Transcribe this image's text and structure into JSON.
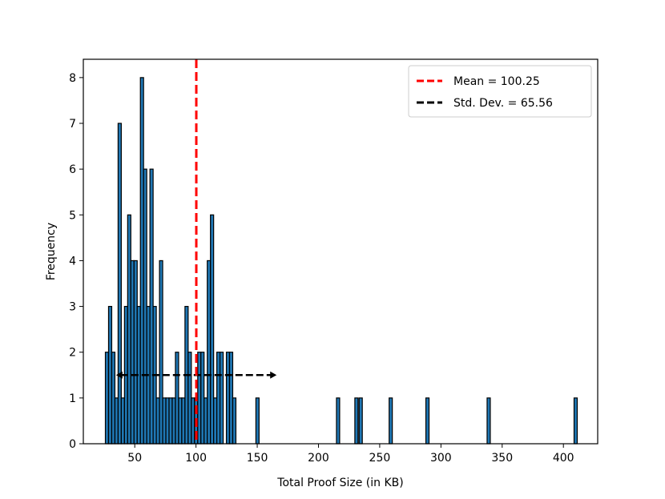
{
  "chart_data": {
    "type": "bar",
    "subtype": "histogram",
    "xlabel": "Total Proof Size (in KB)",
    "ylabel": "Frequency",
    "xlim": [
      8,
      428
    ],
    "ylim": [
      0,
      8.4
    ],
    "xticks": [
      50,
      100,
      150,
      200,
      250,
      300,
      350,
      400
    ],
    "yticks": [
      0,
      1,
      2,
      3,
      4,
      5,
      6,
      7,
      8
    ],
    "grid": false,
    "legend_position": "top-right",
    "bin_width": 2.6,
    "bar_color": "#1f77b4",
    "edge_color": "#000000",
    "bins": [
      {
        "x": 27.3,
        "count": 2
      },
      {
        "x": 29.9,
        "count": 3
      },
      {
        "x": 32.5,
        "count": 2
      },
      {
        "x": 35.1,
        "count": 1
      },
      {
        "x": 37.7,
        "count": 7
      },
      {
        "x": 40.3,
        "count": 1
      },
      {
        "x": 42.9,
        "count": 3
      },
      {
        "x": 45.5,
        "count": 5
      },
      {
        "x": 48.1,
        "count": 4
      },
      {
        "x": 50.7,
        "count": 4
      },
      {
        "x": 53.3,
        "count": 3
      },
      {
        "x": 55.9,
        "count": 8
      },
      {
        "x": 58.5,
        "count": 6
      },
      {
        "x": 61.1,
        "count": 3
      },
      {
        "x": 63.7,
        "count": 6
      },
      {
        "x": 66.3,
        "count": 3
      },
      {
        "x": 68.9,
        "count": 1
      },
      {
        "x": 71.5,
        "count": 4
      },
      {
        "x": 74.1,
        "count": 1
      },
      {
        "x": 76.7,
        "count": 1
      },
      {
        "x": 79.3,
        "count": 1
      },
      {
        "x": 81.9,
        "count": 1
      },
      {
        "x": 84.5,
        "count": 2
      },
      {
        "x": 87.1,
        "count": 1
      },
      {
        "x": 89.7,
        "count": 1
      },
      {
        "x": 92.3,
        "count": 3
      },
      {
        "x": 94.9,
        "count": 2
      },
      {
        "x": 97.5,
        "count": 1
      },
      {
        "x": 100.1,
        "count": 1
      },
      {
        "x": 102.7,
        "count": 2
      },
      {
        "x": 105.3,
        "count": 2
      },
      {
        "x": 107.9,
        "count": 1
      },
      {
        "x": 110.5,
        "count": 4
      },
      {
        "x": 113.1,
        "count": 5
      },
      {
        "x": 115.7,
        "count": 1
      },
      {
        "x": 118.3,
        "count": 2
      },
      {
        "x": 120.9,
        "count": 2
      },
      {
        "x": 126.1,
        "count": 2
      },
      {
        "x": 128.7,
        "count": 2
      },
      {
        "x": 131.3,
        "count": 1
      },
      {
        "x": 150.2,
        "count": 1
      },
      {
        "x": 216.0,
        "count": 1
      },
      {
        "x": 231.0,
        "count": 1
      },
      {
        "x": 234.5,
        "count": 1
      },
      {
        "x": 259.0,
        "count": 1
      },
      {
        "x": 289.0,
        "count": 1
      },
      {
        "x": 339.0,
        "count": 1
      },
      {
        "x": 410.0,
        "count": 1
      }
    ],
    "mean_line": {
      "x": 100.25,
      "color": "#ff0000",
      "label": "Mean = 100.25"
    },
    "std_dev": {
      "value": 65.56,
      "from": 34.69,
      "to": 165.81,
      "y": 1.5,
      "color": "#000000",
      "label": "Std. Dev. = 65.56"
    },
    "legend": [
      {
        "label": "Mean = 100.25",
        "color": "#ff0000",
        "style": "dashed"
      },
      {
        "label": "Std. Dev. = 65.56",
        "color": "#000000",
        "style": "dashed"
      }
    ]
  }
}
